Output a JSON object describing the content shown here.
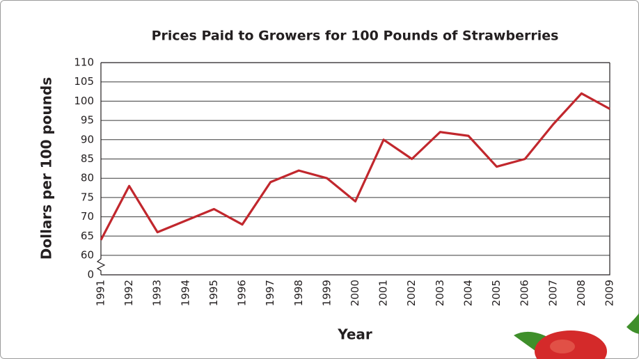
{
  "chart_data": {
    "type": "line",
    "title": "Prices Paid to Growers for 100 Pounds of Strawberries",
    "x_label": "Year",
    "y_label": "Dollars per 100 pounds",
    "x": [
      1991,
      1992,
      1993,
      1994,
      1995,
      1996,
      1997,
      1998,
      1999,
      2000,
      2001,
      2002,
      2003,
      2004,
      2005,
      2006,
      2007,
      2008,
      2009
    ],
    "series": [
      {
        "color": "#c1272d",
        "values": [
          64,
          78,
          66,
          69,
          72,
          68,
          79,
          82,
          80,
          74,
          90,
          85,
          92,
          91,
          83,
          85,
          94,
          102,
          98
        ]
      }
    ],
    "xlim": [
      1991,
      2009
    ],
    "ylim": [
      0,
      110
    ],
    "yticks": [
      0,
      60,
      65,
      70,
      75,
      80,
      85,
      90,
      95,
      100,
      105,
      110
    ],
    "y_axis_break": true,
    "grid": true
  }
}
